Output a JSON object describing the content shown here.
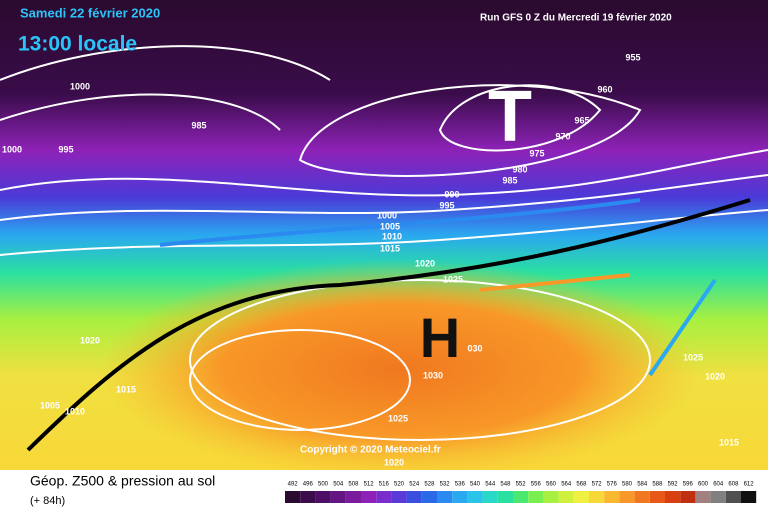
{
  "header": {
    "date": "Samedi 22 février 2020",
    "time": "13:00 locale",
    "run": "Run GFS 0 Z du Mercredi 19 février 2020"
  },
  "map": {
    "low": "T",
    "high": "H",
    "copyright": "Copyright © 2020 Meteociel.fr",
    "isobar_labels": [
      "1000",
      "1000",
      "995",
      "985",
      "955",
      "960",
      "965",
      "970",
      "975",
      "980",
      "985",
      "990",
      "995",
      "1000",
      "1005",
      "1010",
      "1015",
      "1020",
      "1025",
      "1020",
      "1015",
      "1005",
      "1010",
      "030",
      "1030",
      "1025",
      "1020",
      "1025",
      "1020",
      "1015"
    ]
  },
  "footer": {
    "title": "Géop. Z500 & pression au sol",
    "lead": "(+ 84h)"
  },
  "scale": {
    "values": [
      492,
      496,
      500,
      504,
      508,
      512,
      516,
      520,
      524,
      528,
      532,
      536,
      540,
      544,
      548,
      552,
      556,
      560,
      564,
      568,
      572,
      576,
      580,
      584,
      588,
      592,
      596,
      600,
      604,
      608,
      612
    ],
    "colors": [
      "#2a0a2e",
      "#3a0c4a",
      "#4d0f66",
      "#631582",
      "#7a1b9e",
      "#8e22b8",
      "#7a2ccc",
      "#5a3ad8",
      "#3a4ee0",
      "#2a6ae8",
      "#2a8af0",
      "#2aa8f0",
      "#2ac4e8",
      "#2ad8c8",
      "#2ae0a0",
      "#4ae870",
      "#7af050",
      "#a8f040",
      "#d0f040",
      "#f0f040",
      "#f8d838",
      "#f8b830",
      "#f89828",
      "#f07820",
      "#e85818",
      "#d84010",
      "#c03010",
      "#a08080",
      "#808080",
      "#505050",
      "#101010"
    ]
  }
}
